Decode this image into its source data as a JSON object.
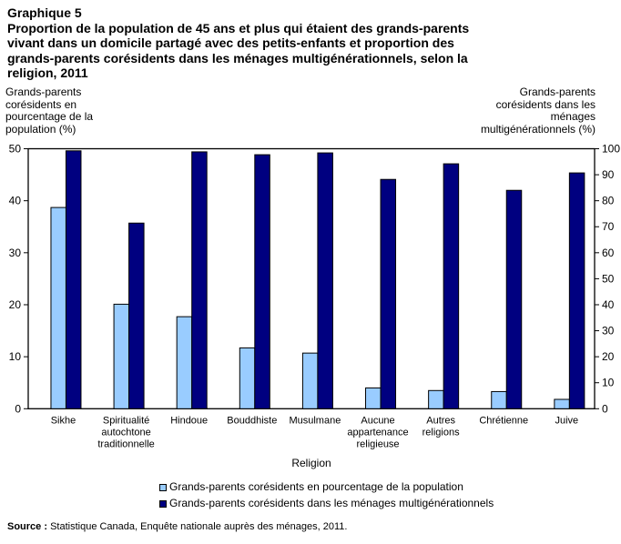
{
  "chart_data": {
    "type": "bar",
    "title_line1": "Graphique 5",
    "title": "Proportion de la population de 45 ans et plus qui étaient des grands-parents vivant dans un domicile partagé avec des petits-enfants et proportion des grands-parents corésidents dans les ménages multigénérationnels, selon la religion, 2011",
    "xlabel": "Religion",
    "ylabel_left": "Grands-parents corésidents en pourcentage de la population (%)",
    "ylabel_right": "Grands-parents corésidents dans les ménages multigénérationnels (%)",
    "ylim_left": [
      0,
      50
    ],
    "ylim_right": [
      0,
      100
    ],
    "yticks_left": [
      "0",
      "10",
      "20",
      "30",
      "40",
      "50"
    ],
    "yticks_right": [
      "0",
      "10",
      "20",
      "30",
      "40",
      "50",
      "60",
      "70",
      "80",
      "90",
      "100"
    ],
    "categories": [
      [
        "Sikhe"
      ],
      [
        "Spiritualité",
        "autochtone",
        "traditionnelle"
      ],
      [
        "Hindoue"
      ],
      [
        "Bouddhiste"
      ],
      [
        "Musulmane"
      ],
      [
        "Aucune",
        "appartenance",
        "religieuse"
      ],
      [
        "Autres",
        "religions"
      ],
      [
        "Chrétienne"
      ],
      [
        "Juive"
      ]
    ],
    "series": [
      {
        "name": "Grands-parents corésidents en pourcentage de la population",
        "axis": "left",
        "color": "#99ccff",
        "values": [
          38.7,
          20.1,
          17.7,
          11.7,
          10.7,
          4.0,
          3.5,
          3.3,
          1.8
        ]
      },
      {
        "name": "Grands-parents corésidents dans les ménages multigénérationnels",
        "axis": "right",
        "color": "#000080",
        "values": [
          99.2,
          71.4,
          98.8,
          97.7,
          98.4,
          88.2,
          94.2,
          84.0,
          90.7
        ]
      }
    ],
    "grid": false,
    "legend_position": "bottom"
  },
  "source_label": "Source :",
  "source_text": " Statistique Canada, Enquête nationale auprès des ménages, 2011."
}
